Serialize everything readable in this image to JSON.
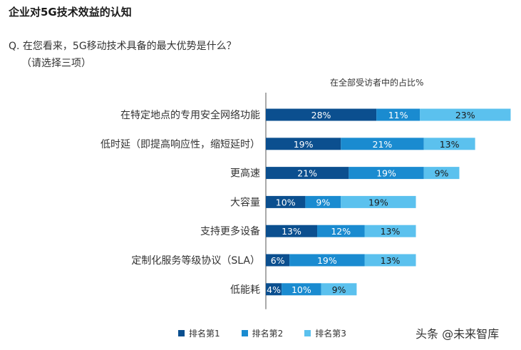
{
  "title": "企业对5G技术效益的认知",
  "question": "Q. 在您看来，5G移动技术具备的最大优势是什么？",
  "question_note": "（请选择三项）",
  "watermark": "头条 @未来智库",
  "chart_data": {
    "type": "bar",
    "orientation": "horizontal",
    "stacked": true,
    "title": "在全部受访者中的占比%",
    "categories": [
      "在特定地点的专用安全网络功能",
      "低时延（即提高响应性，缩短延时）",
      "更高速",
      "大容量",
      "支持更多设备",
      "定制化服务等级协议（SLA）",
      "低能耗"
    ],
    "series": [
      {
        "name": "排名第1",
        "color": "#0b4f8f",
        "values": [
          28,
          19,
          21,
          10,
          13,
          6,
          4
        ]
      },
      {
        "name": "排名第2",
        "color": "#1a8bd0",
        "values": [
          11,
          21,
          19,
          9,
          12,
          19,
          10
        ]
      },
      {
        "name": "排名第3",
        "color": "#5bc1ee",
        "values": [
          23,
          13,
          9,
          19,
          13,
          13,
          9
        ]
      }
    ],
    "value_suffix": "%",
    "xlim": [
      0,
      62
    ],
    "grid": false,
    "legend_position": "bottom"
  }
}
